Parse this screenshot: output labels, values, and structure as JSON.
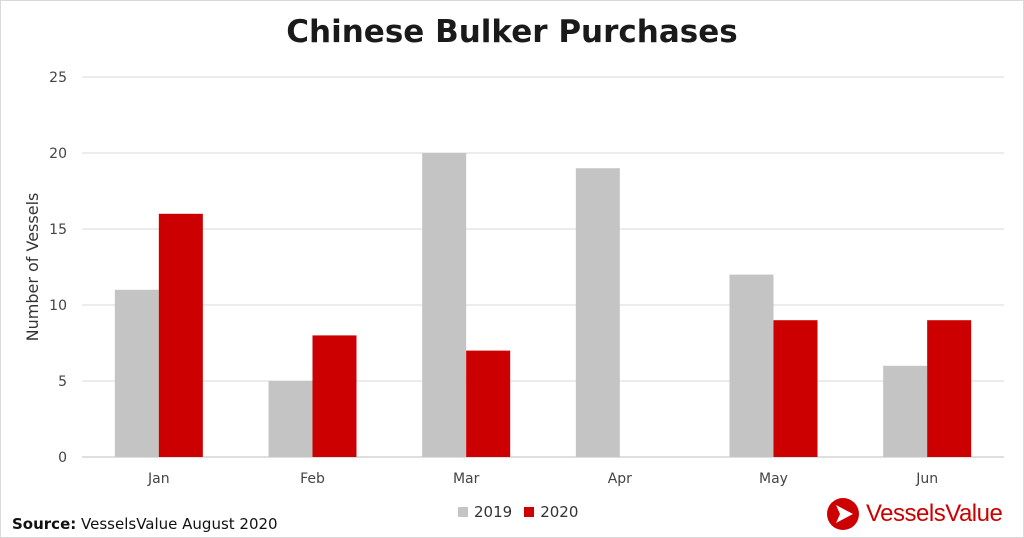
{
  "chart_data": {
    "type": "bar",
    "title": "Chinese Bulker Purchases",
    "ylabel": "Number of Vessels",
    "xlabel": "",
    "categories": [
      "Jan",
      "Feb",
      "Mar",
      "Apr",
      "May",
      "Jun"
    ],
    "series": [
      {
        "name": "2019",
        "values": [
          11,
          5,
          20,
          19,
          12,
          6
        ],
        "color": "#c4c4c4"
      },
      {
        "name": "2020",
        "values": [
          16,
          8,
          7,
          0,
          9,
          9
        ],
        "color": "#cc0000"
      }
    ],
    "ylim": [
      0,
      25
    ],
    "yticks": [
      "0",
      "5",
      "10",
      "15",
      "20",
      "25"
    ],
    "grid": true,
    "legend": "bottom-center"
  },
  "source": {
    "label": "Source:",
    "text": "VesselsValue August 2020"
  },
  "logo": {
    "text": "VesselsValue",
    "color": "#cc0000"
  }
}
